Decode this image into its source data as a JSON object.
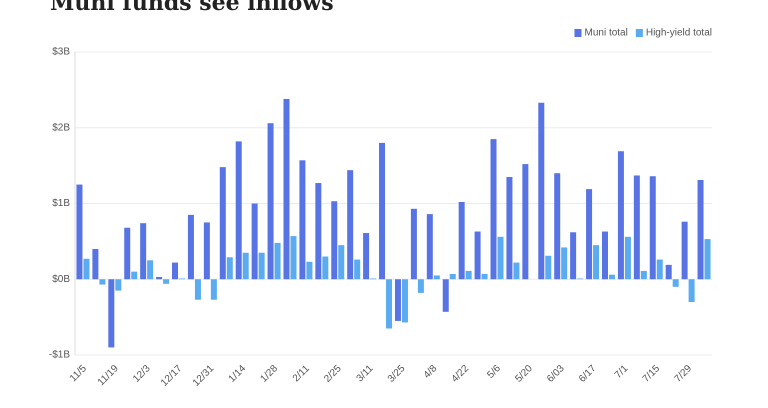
{
  "chart_data": {
    "type": "bar",
    "title": "Muni funds see inflows",
    "categories": [
      "11/5",
      null,
      "11/19",
      null,
      "12/3",
      null,
      "12/17",
      null,
      "12/31",
      null,
      "1/14",
      null,
      "1/28",
      null,
      "2/11",
      null,
      "2/25",
      null,
      "3/11",
      null,
      "3/25",
      null,
      "4/8",
      null,
      "4/22",
      null,
      "5/6",
      null,
      "5/20",
      null,
      "6/03",
      null,
      "6/17",
      null,
      "7/1",
      null,
      "7/15",
      null,
      "7/29",
      null
    ],
    "series": [
      {
        "name": "Muni total",
        "color": "#5873e3",
        "values": [
          1.25,
          0.4,
          -0.9,
          0.68,
          0.74,
          0.03,
          0.22,
          0.85,
          0.75,
          1.48,
          1.82,
          1.0,
          2.06,
          2.38,
          1.57,
          1.27,
          1.03,
          1.44,
          0.61,
          1.8,
          -0.55,
          0.93,
          0.86,
          -0.43,
          1.02,
          0.63,
          1.85,
          1.35,
          1.52,
          2.33,
          1.4,
          0.62,
          1.19,
          0.63,
          1.69,
          1.37,
          1.36,
          0.19,
          0.76,
          1.31
        ]
      },
      {
        "name": "High-yield total",
        "color": "#5aabf0",
        "values": [
          0.27,
          -0.07,
          -0.15,
          0.1,
          0.25,
          -0.06,
          0.01,
          -0.27,
          -0.27,
          0.29,
          0.35,
          0.35,
          0.48,
          0.57,
          0.23,
          0.3,
          0.45,
          0.26,
          0.01,
          -0.65,
          -0.57,
          -0.18,
          0.05,
          0.07,
          0.11,
          0.07,
          0.56,
          0.22,
          0.0,
          0.31,
          0.42,
          0.01,
          0.45,
          0.06,
          0.56,
          0.11,
          0.26,
          -0.1,
          -0.3,
          0.53
        ]
      }
    ],
    "ylim": [
      -1,
      3
    ],
    "yticks": [
      {
        "value": -1,
        "label": "-$1B"
      },
      {
        "value": 0,
        "label": "$0B"
      },
      {
        "value": 1,
        "label": "$1B"
      },
      {
        "value": 2,
        "label": "$2B"
      },
      {
        "value": 3,
        "label": "$3B"
      }
    ],
    "grid": true,
    "legend": "top-right"
  }
}
